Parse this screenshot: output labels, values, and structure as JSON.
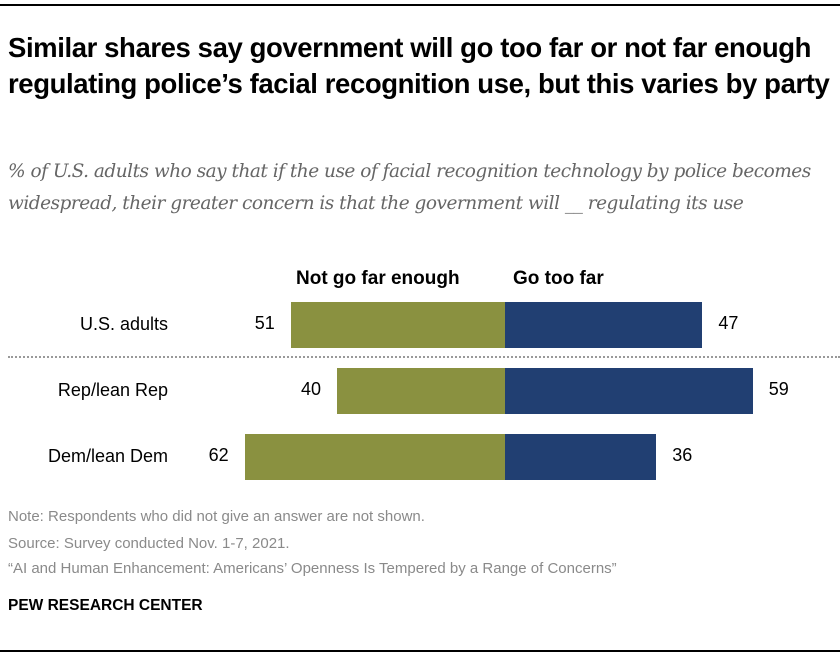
{
  "chart_data": {
    "type": "bar",
    "orientation": "horizontal-diverging",
    "title": "Similar shares say government will go too far or not far enough regulating police’s facial recognition use, but this varies by party",
    "subtitle": "% of U.S. adults who say that if the use of facial recognition technology by police becomes widespread, their greater concern is that the government will __ regulating its use",
    "categories": [
      "U.S. adults",
      "Rep/lean Rep",
      "Dem/lean Dem"
    ],
    "series": [
      {
        "name": "Not go far enough",
        "color": "#8a9140",
        "values": [
          51,
          40,
          62
        ]
      },
      {
        "name": "Go too far",
        "color": "#213f72",
        "values": [
          47,
          59,
          36
        ]
      }
    ],
    "legend": "top",
    "grid": false,
    "notes": [
      "Note: Respondents who did not give an answer are not shown.",
      "Source: Survey conducted Nov. 1-7, 2021.",
      "“AI and Human Enhancement: Americans’ Openness Is Tempered by a Range of Concerns”"
    ],
    "source_label": "PEW RESEARCH CENTER"
  }
}
